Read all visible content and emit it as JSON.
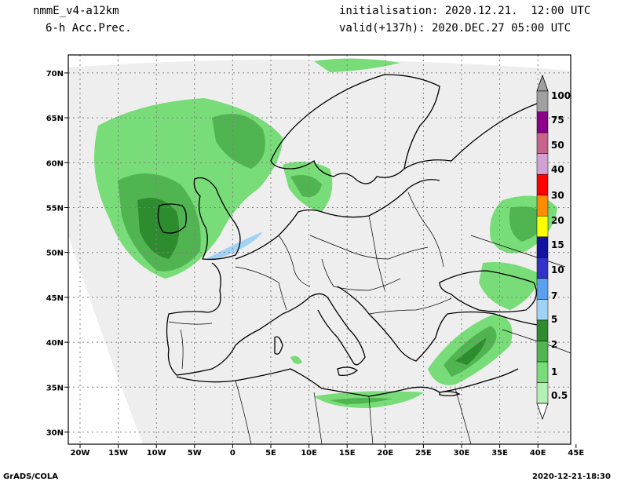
{
  "header": {
    "model": "nmmE_v4-a12km",
    "field": "6-h Acc.Prec.",
    "init": "initialisation: 2020.12.21.  12:00 UTC",
    "valid": "valid(+137h): 2020.DEC.27 05:00 UTC"
  },
  "footer": {
    "left": "GrADS/COLA",
    "right": "2020-12-21-18:30"
  },
  "axes": {
    "lat_labels": [
      "30N",
      "35N",
      "40N",
      "45N",
      "50N",
      "55N",
      "60N",
      "65N",
      "70N"
    ],
    "lon_labels": [
      "20W",
      "15W",
      "10W",
      "5W",
      "0",
      "5E",
      "10E",
      "15E",
      "20E",
      "25E",
      "30E",
      "35E",
      "40E",
      "45E"
    ]
  },
  "colorbar": {
    "labels": [
      "0.5",
      "1",
      "2",
      "5",
      "7",
      "10",
      "15",
      "20",
      "30",
      "40",
      "50",
      "75",
      "100"
    ],
    "colors": [
      "#b4f0b4",
      "#78dc78",
      "#50b450",
      "#2d8c2d",
      "#a0d2f5",
      "#5aa0f0",
      "#3232c8",
      "#1414a0",
      "#ffff00",
      "#ff8c00",
      "#ff0000",
      "#d2a0d2",
      "#c8648c",
      "#8c008c",
      "#a0a0a0"
    ]
  },
  "map_colors": {
    "domain": "#eeeeee",
    "land_line": "#000000",
    "grid": "#808080"
  }
}
